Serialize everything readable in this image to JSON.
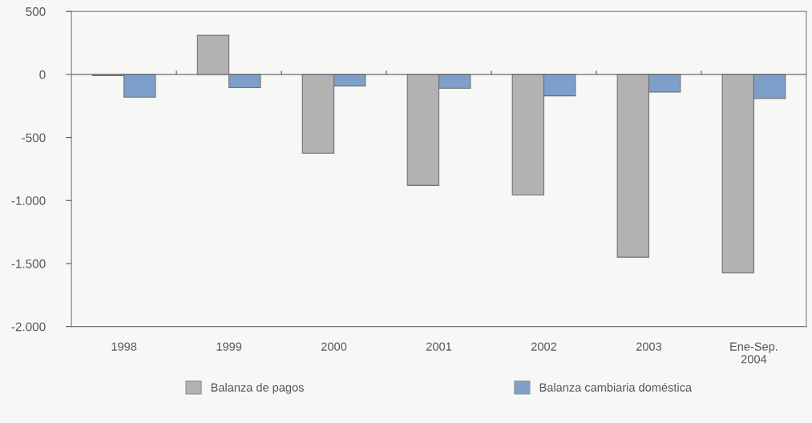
{
  "chart_data": {
    "type": "bar",
    "categories": [
      "1998",
      "1999",
      "2000",
      "2001",
      "2002",
      "2003",
      "Ene-Sep.\n2004"
    ],
    "series": [
      {
        "name": "Balanza de pagos",
        "color": "#b3b1b1",
        "values": [
          -10,
          310,
          -625,
          -880,
          -955,
          -1450,
          -1575
        ]
      },
      {
        "name": "Balanza cambiaria doméstica",
        "color": "#7f9fcb",
        "values": [
          -180,
          -105,
          -90,
          -110,
          -170,
          -140,
          -190
        ]
      }
    ],
    "ylim": [
      -2000,
      500
    ],
    "yticks": [
      {
        "value": 500,
        "label": "500"
      },
      {
        "value": 0,
        "label": "0"
      },
      {
        "value": -500,
        "label": "-500"
      },
      {
        "value": -1000,
        "label": "-1.000"
      },
      {
        "value": -1500,
        "label": "-1.500"
      },
      {
        "value": -2000,
        "label": "-2.000"
      }
    ],
    "ref_lines": [
      {
        "axis": "y",
        "value": 0,
        "color": "#6d6d6d"
      }
    ],
    "legend": "bottom"
  }
}
